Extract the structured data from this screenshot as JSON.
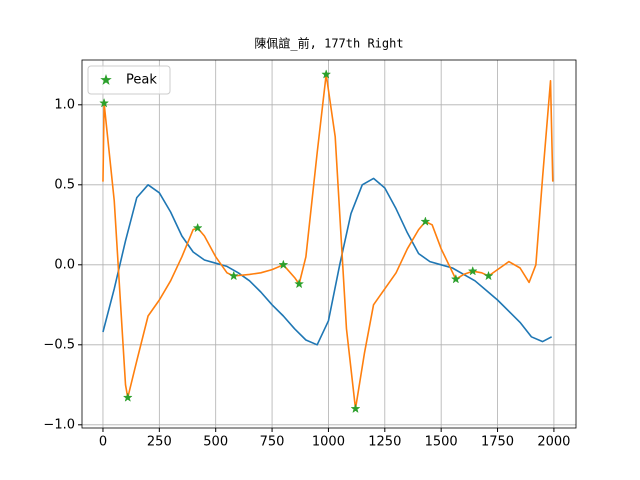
{
  "chart_data": {
    "type": "line",
    "title": "陳佩誼_前, 177th Right",
    "series": [
      {
        "color": "#1f77b4",
        "x": [
          0,
          50,
          100,
          150,
          200,
          250,
          300,
          350,
          400,
          450,
          500,
          550,
          600,
          650,
          700,
          750,
          800,
          850,
          900,
          950,
          1000,
          1050,
          1100,
          1150,
          1200,
          1250,
          1300,
          1350,
          1400,
          1450,
          1500,
          1550,
          1600,
          1650,
          1700,
          1750,
          1800,
          1850,
          1900,
          1950,
          1990
        ],
        "values": [
          -0.42,
          -0.15,
          0.15,
          0.42,
          0.5,
          0.45,
          0.33,
          0.18,
          0.08,
          0.03,
          0.01,
          -0.01,
          -0.05,
          -0.1,
          -0.17,
          -0.25,
          -0.32,
          -0.4,
          -0.47,
          -0.5,
          -0.35,
          0.0,
          0.32,
          0.5,
          0.54,
          0.48,
          0.35,
          0.2,
          0.07,
          0.02,
          0.0,
          -0.02,
          -0.06,
          -0.1,
          -0.16,
          -0.22,
          -0.29,
          -0.36,
          -0.45,
          -0.48,
          -0.45
        ]
      },
      {
        "color": "#ff7f0e",
        "x": [
          0,
          5,
          50,
          100,
          110,
          150,
          200,
          250,
          300,
          350,
          400,
          420,
          450,
          500,
          550,
          580,
          650,
          700,
          750,
          800,
          850,
          870,
          900,
          950,
          990,
          1030,
          1080,
          1120,
          1160,
          1200,
          1250,
          1300,
          1350,
          1400,
          1430,
          1460,
          1500,
          1565,
          1600,
          1640,
          1680,
          1710,
          1750,
          1800,
          1850,
          1890,
          1920,
          1950,
          1985,
          1995
        ],
        "values": [
          0.52,
          1.01,
          0.4,
          -0.75,
          -0.83,
          -0.6,
          -0.32,
          -0.22,
          -0.1,
          0.05,
          0.22,
          0.23,
          0.18,
          0.05,
          -0.05,
          -0.07,
          -0.06,
          -0.05,
          -0.03,
          0.0,
          -0.08,
          -0.12,
          0.05,
          0.7,
          1.19,
          0.8,
          -0.4,
          -0.9,
          -0.55,
          -0.25,
          -0.15,
          -0.05,
          0.1,
          0.22,
          0.27,
          0.25,
          0.1,
          -0.09,
          -0.06,
          -0.04,
          -0.05,
          -0.07,
          -0.03,
          0.02,
          -0.02,
          -0.11,
          0.0,
          0.55,
          1.15,
          0.52
        ]
      },
      {
        "name": "Peak",
        "type": "scatter",
        "marker": "star",
        "color": "#2ca02c",
        "x": [
          5,
          110,
          420,
          580,
          800,
          870,
          990,
          1120,
          1430,
          1565,
          1640,
          1710
        ],
        "values": [
          1.01,
          -0.83,
          0.23,
          -0.07,
          0.0,
          -0.12,
          1.19,
          -0.9,
          0.27,
          -0.09,
          -0.04,
          -0.07
        ]
      }
    ],
    "xlim": [
      -93,
      2098
    ],
    "ylim": [
      -1.02,
      1.28
    ],
    "xticks": [
      0,
      250,
      500,
      750,
      1000,
      1250,
      1500,
      1750,
      2000
    ],
    "yticks": [
      {
        "value": -1.0,
        "label": "−1.0"
      },
      {
        "value": -0.5,
        "label": "−0.5"
      },
      {
        "value": 0.0,
        "label": "0.0"
      },
      {
        "value": 0.5,
        "label": "0.5"
      },
      {
        "value": 1.0,
        "label": "1.0"
      }
    ],
    "grid": true,
    "legend": "upper left"
  }
}
